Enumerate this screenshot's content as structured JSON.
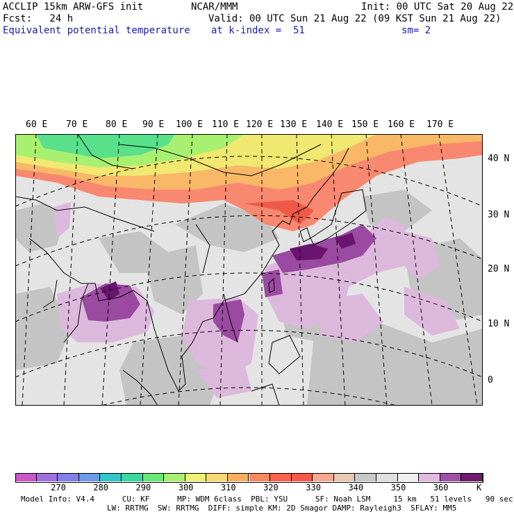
{
  "header": {
    "line1_left": "ACCLIP 15km ARW-GFS init",
    "line1_center": "NCAR/MMM",
    "line1_right": "Init: 00 UTC Sat 20 Aug 22",
    "line2_left": "Fcst:   24 h",
    "line2_right": "Valid: 00 UTC Sun 21 Aug 22 (09 KST Sun 21 Aug 22)",
    "line3_field": "Equivalent potential temperature",
    "line3_level": "at k-index =  51",
    "line3_smooth": "sm= 2"
  },
  "map": {
    "lon_labels": [
      "60 E",
      "70 E",
      "80 E",
      "90 E",
      "100 E",
      "110 E",
      "120 E",
      "130 E",
      "140 E",
      "150 E",
      "160 E",
      "170 E"
    ],
    "lat_labels": [
      "40 N",
      "30 N",
      "20 N",
      "10 N",
      "0"
    ]
  },
  "colorbar": {
    "colors": [
      "#cc55cc",
      "#a070e0",
      "#8080e8",
      "#6a9ae8",
      "#30c8c8",
      "#38d8a0",
      "#68e878",
      "#a8f070",
      "#f0f070",
      "#f8d870",
      "#f8b060",
      "#f88860",
      "#f86050",
      "#f85848",
      "#f8a890",
      "#e8c8b0",
      "#c8c8c8",
      "#e0e0e0",
      "#f0f0f0",
      "#e0b8e0",
      "#a050a8",
      "#701870"
    ],
    "labels": [
      "270",
      "280",
      "290",
      "300",
      "310",
      "320",
      "330",
      "340",
      "350",
      "360"
    ],
    "unit": "K"
  },
  "footer": {
    "line1": "Model Info: V4.4      CU: KF      MP: WDM 6class  PBL: YSU      SF: Noah LSM     15 km   51 levels   90 sec",
    "line2": "LW: RRTMG  SW: RRTMG  DIFF: simple KM: 2D Smagor DAMP: Rayleigh3  SFLAY: MM5"
  }
}
